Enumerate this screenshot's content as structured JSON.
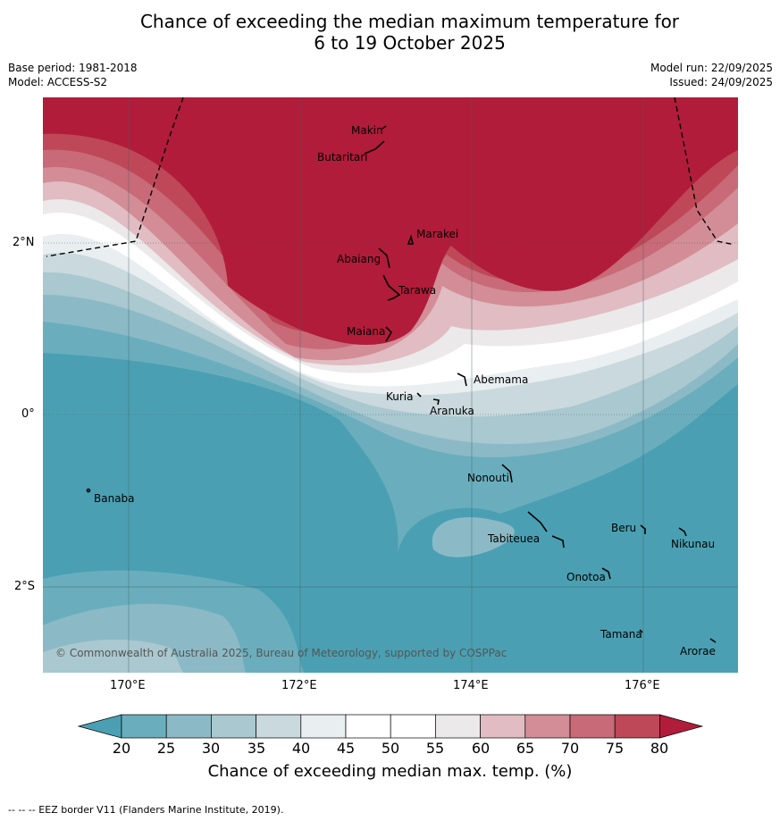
{
  "title_line1": "Chance of exceeding the median maximum temperature for",
  "title_line2": "6 to 19 October 2025",
  "base_period": "Base period: 1981-2018",
  "model": "Model: ACCESS-S2",
  "model_run": "Model run: 22/09/2025",
  "issued": "Issued: 24/09/2025",
  "lat_labels": [
    "2°N",
    "0°",
    "2°S"
  ],
  "lon_labels": [
    "170°E",
    "172°E",
    "174°E",
    "176°E"
  ],
  "places": {
    "makin": "Makin",
    "butaritari": "Butaritari",
    "marakei": "Marakei",
    "abaiang": "Abaiang",
    "tarawa": "Tarawa",
    "maiana": "Maiana",
    "abemama": "Abemama",
    "kuria": "Kuria",
    "aranuka": "Aranuka",
    "nonouti": "Nonouti",
    "banaba": "Banaba",
    "beru": "Beru",
    "nikunau": "Nikunau",
    "tabiteuea": "Tabiteuea",
    "onotoa": "Onotoa",
    "tamana": "Tamana",
    "arorae": "Arorae"
  },
  "copyright": "© Commonwealth of Australia 2025, Bureau of Meteorology, supported by COSPPac",
  "colorbar": {
    "ticks": [
      "20",
      "25",
      "30",
      "35",
      "40",
      "45",
      "50",
      "55",
      "60",
      "65",
      "70",
      "75",
      "80"
    ],
    "title": "Chance of exceeding median max. temp. (%)"
  },
  "colors": {
    "below_20": "#4aa0b2",
    "c20_25": "#6aaebd",
    "c25_30": "#8bbac6",
    "c30_35": "#a9c8cf",
    "c35_40": "#c9d9dd",
    "c40_45": "#e9eef0",
    "c45_55": "#ffffff",
    "c55_60": "#ebe9ea",
    "c60_65": "#e1bcc2",
    "c65_70": "#d28d97",
    "c70_75": "#c86a77",
    "c75_80": "#be4857",
    "above_80": "#b11c3a"
  },
  "footer": "--  --  -- EEZ border V11 (Flanders Marine Institute, 2019)."
}
